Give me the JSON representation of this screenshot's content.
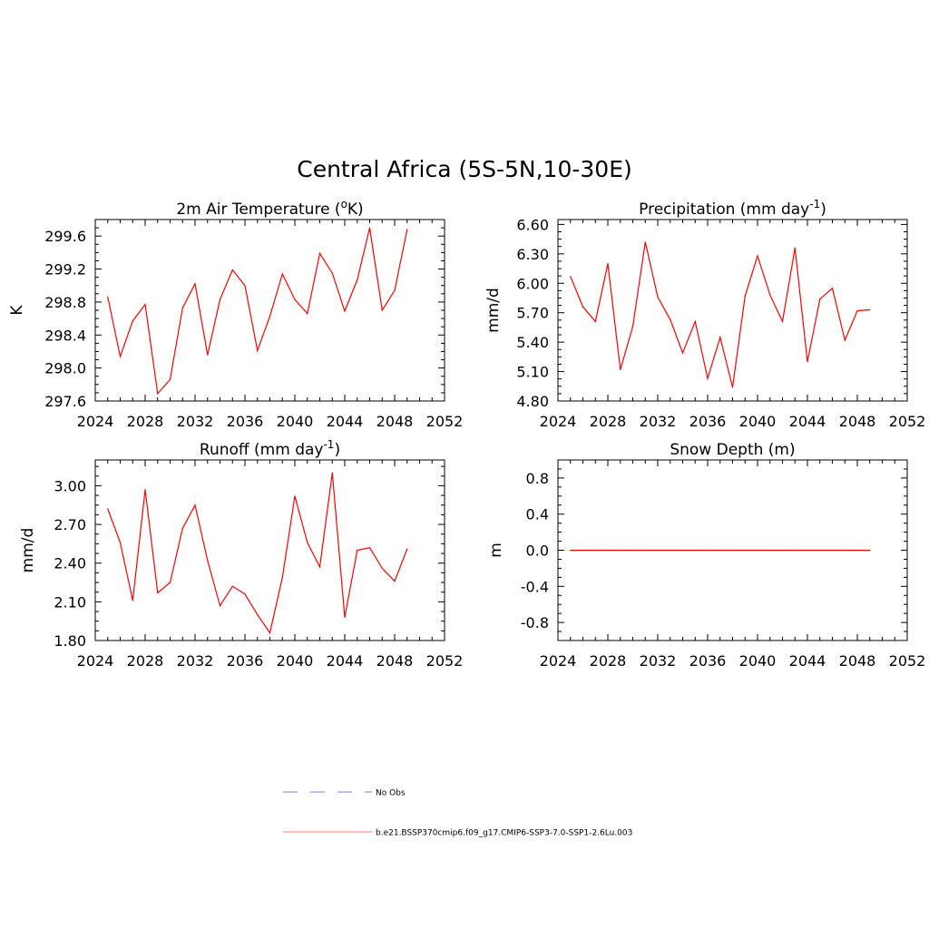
{
  "title": "Central Africa (5S-5N,10-30E)",
  "colors": {
    "series": "#ff0000",
    "obs": "#9999dd",
    "axis": "#000000"
  },
  "legend": [
    {
      "label": "No Obs",
      "style": "dashed",
      "color": "#9999dd"
    },
    {
      "label": "b.e21.BSSP370cmip6.f09_g17.CMIP6-SSP3-7.0-SSP1-2.6Lu.003",
      "style": "solid",
      "color": "#ff0000"
    }
  ],
  "chart_data": [
    {
      "type": "line",
      "title_main": "2m Air Temperature (",
      "title_sup": "o",
      "title_rest": "K)",
      "ylabel": "K",
      "xlim": [
        2024,
        2052
      ],
      "ylim": [
        297.6,
        299.8
      ],
      "xticks": [
        2024,
        2028,
        2032,
        2036,
        2040,
        2044,
        2048,
        2052
      ],
      "yticks": [
        297.6,
        298.0,
        298.4,
        298.8,
        299.2,
        299.6
      ],
      "ytick_labels": [
        "297.6",
        "298.0",
        "298.4",
        "298.8",
        "299.2",
        "299.6"
      ],
      "x": [
        2025,
        2026,
        2027,
        2028,
        2029,
        2030,
        2031,
        2032,
        2033,
        2034,
        2035,
        2036,
        2037,
        2038,
        2039,
        2040,
        2041,
        2042,
        2043,
        2044,
        2045,
        2046,
        2047,
        2048,
        2049
      ],
      "values": [
        298.86,
        298.14,
        298.57,
        298.77,
        297.69,
        297.86,
        298.73,
        299.02,
        298.16,
        298.83,
        299.19,
        299.0,
        298.21,
        298.63,
        299.14,
        298.83,
        298.66,
        299.39,
        299.15,
        298.69,
        299.07,
        299.7,
        298.7,
        298.94,
        299.68
      ]
    },
    {
      "type": "line",
      "title_main": "Precipitation (mm day",
      "title_sup": "-1",
      "title_rest": ")",
      "ylabel": "mm/d",
      "xlim": [
        2024,
        2052
      ],
      "ylim": [
        4.8,
        6.65
      ],
      "xticks": [
        2024,
        2028,
        2032,
        2036,
        2040,
        2044,
        2048,
        2052
      ],
      "yticks": [
        4.8,
        5.1,
        5.4,
        5.7,
        6.0,
        6.3,
        6.6
      ],
      "ytick_labels": [
        "4.80",
        "5.10",
        "5.40",
        "5.70",
        "6.00",
        "6.30",
        "6.60"
      ],
      "x": [
        2025,
        2026,
        2027,
        2028,
        2029,
        2030,
        2031,
        2032,
        2033,
        2034,
        2035,
        2036,
        2037,
        2038,
        2039,
        2040,
        2041,
        2042,
        2043,
        2044,
        2045,
        2046,
        2047,
        2048,
        2049
      ],
      "values": [
        6.07,
        5.76,
        5.61,
        6.2,
        5.12,
        5.56,
        6.42,
        5.86,
        5.63,
        5.29,
        5.61,
        5.03,
        5.45,
        4.94,
        5.87,
        6.28,
        5.88,
        5.61,
        6.36,
        5.2,
        5.84,
        5.95,
        5.42,
        5.72,
        5.73
      ]
    },
    {
      "type": "line",
      "title_main": "Runoff (mm day",
      "title_sup": "-1",
      "title_rest": ")",
      "ylabel": "mm/d",
      "xlim": [
        2024,
        2052
      ],
      "ylim": [
        1.8,
        3.2
      ],
      "xticks": [
        2024,
        2028,
        2032,
        2036,
        2040,
        2044,
        2048,
        2052
      ],
      "yticks": [
        1.8,
        2.1,
        2.4,
        2.7,
        3.0
      ],
      "ytick_labels": [
        "1.80",
        "2.10",
        "2.40",
        "2.70",
        "3.00"
      ],
      "x": [
        2025,
        2026,
        2027,
        2028,
        2029,
        2030,
        2031,
        2032,
        2033,
        2034,
        2035,
        2036,
        2037,
        2038,
        2039,
        2040,
        2041,
        2042,
        2043,
        2044,
        2045,
        2046,
        2047,
        2048,
        2049
      ],
      "values": [
        2.82,
        2.56,
        2.11,
        2.97,
        2.17,
        2.25,
        2.67,
        2.85,
        2.42,
        2.07,
        2.22,
        2.16,
        2.0,
        1.86,
        2.29,
        2.92,
        2.56,
        2.37,
        3.1,
        1.98,
        2.5,
        2.52,
        2.36,
        2.26,
        2.51
      ]
    },
    {
      "type": "line",
      "title_main": "Snow Depth (m)",
      "title_sup": "",
      "title_rest": "",
      "ylabel": "m",
      "xlim": [
        2024,
        2052
      ],
      "ylim": [
        -1.0,
        1.0
      ],
      "xticks": [
        2024,
        2028,
        2032,
        2036,
        2040,
        2044,
        2048,
        2052
      ],
      "yticks": [
        -0.8,
        -0.4,
        0.0,
        0.4,
        0.8
      ],
      "ytick_labels": [
        "-0.8",
        "-0.4",
        "0.0",
        "0.4",
        "0.8"
      ],
      "x": [
        2025,
        2026,
        2027,
        2028,
        2029,
        2030,
        2031,
        2032,
        2033,
        2034,
        2035,
        2036,
        2037,
        2038,
        2039,
        2040,
        2041,
        2042,
        2043,
        2044,
        2045,
        2046,
        2047,
        2048,
        2049
      ],
      "values": [
        0,
        0,
        0,
        0,
        0,
        0,
        0,
        0,
        0,
        0,
        0,
        0,
        0,
        0,
        0,
        0,
        0,
        0,
        0,
        0,
        0,
        0,
        0,
        0,
        0
      ]
    }
  ]
}
